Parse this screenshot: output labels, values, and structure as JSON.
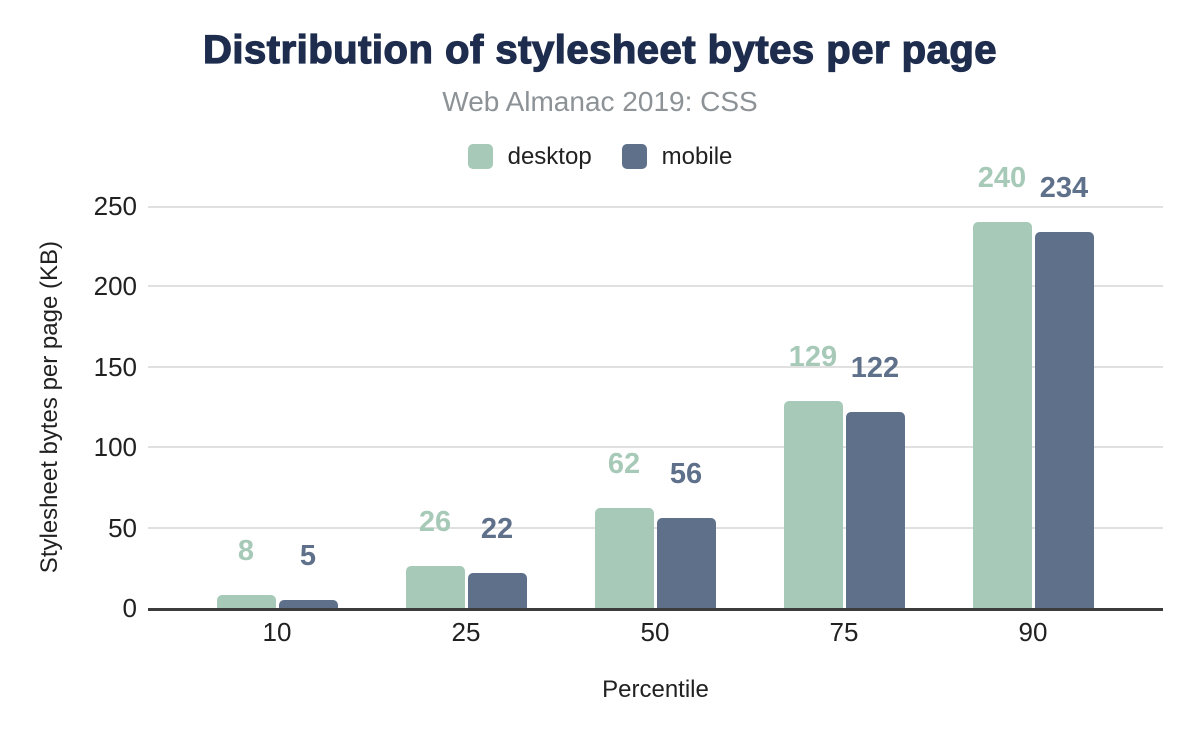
{
  "header": {
    "title": "Distribution of stylesheet bytes per page",
    "subtitle": "Web Almanac 2019: CSS"
  },
  "axes": {
    "x_title": "Percentile",
    "y_title": "Stylesheet bytes per page (KB)"
  },
  "colors": {
    "title": "#1e2d4e",
    "subtitle": "#8c9296",
    "desktop": "#a7c9b8",
    "mobile": "#5f708a",
    "axis_line": "#3c3c3c",
    "gridline": "#e0e0e0",
    "tick_text": "#212121",
    "background": "#ffffff"
  },
  "chart_data": {
    "type": "bar",
    "title": "Distribution of stylesheet bytes per page",
    "subtitle": "Web Almanac 2019: CSS",
    "categories": [
      "10",
      "25",
      "50",
      "75",
      "90"
    ],
    "series": [
      {
        "name": "desktop",
        "color": "#a7c9b8",
        "values": [
          8,
          26,
          62,
          129,
          240
        ]
      },
      {
        "name": "mobile",
        "color": "#5f708a",
        "values": [
          5,
          22,
          56,
          122,
          234
        ]
      }
    ],
    "xlabel": "Percentile",
    "ylabel": "Stylesheet bytes per page (KB)",
    "ylim": [
      0,
      250
    ],
    "yticks": [
      0,
      50,
      100,
      150,
      200,
      250
    ],
    "grid": true,
    "legend_position": "top",
    "data_labels": true
  }
}
